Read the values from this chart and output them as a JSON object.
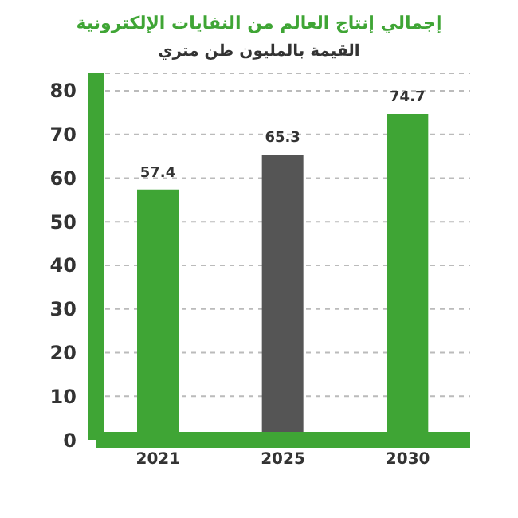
{
  "chart_data": {
    "type": "bar",
    "title": "إجمالي إنتاج العالم من النفايات الإلكترونية",
    "subtitle": "القيمة بالمليون طن متري",
    "categories": [
      "2021",
      "2025",
      "2030"
    ],
    "values": [
      57.4,
      65.3,
      74.7
    ],
    "colors": [
      "#3fa535",
      "#555555",
      "#3fa535"
    ],
    "data_labels": true,
    "ylim": [
      0,
      84
    ],
    "yticks": [
      0,
      10,
      20,
      30,
      40,
      50,
      60,
      70,
      80
    ],
    "grid": "y"
  }
}
